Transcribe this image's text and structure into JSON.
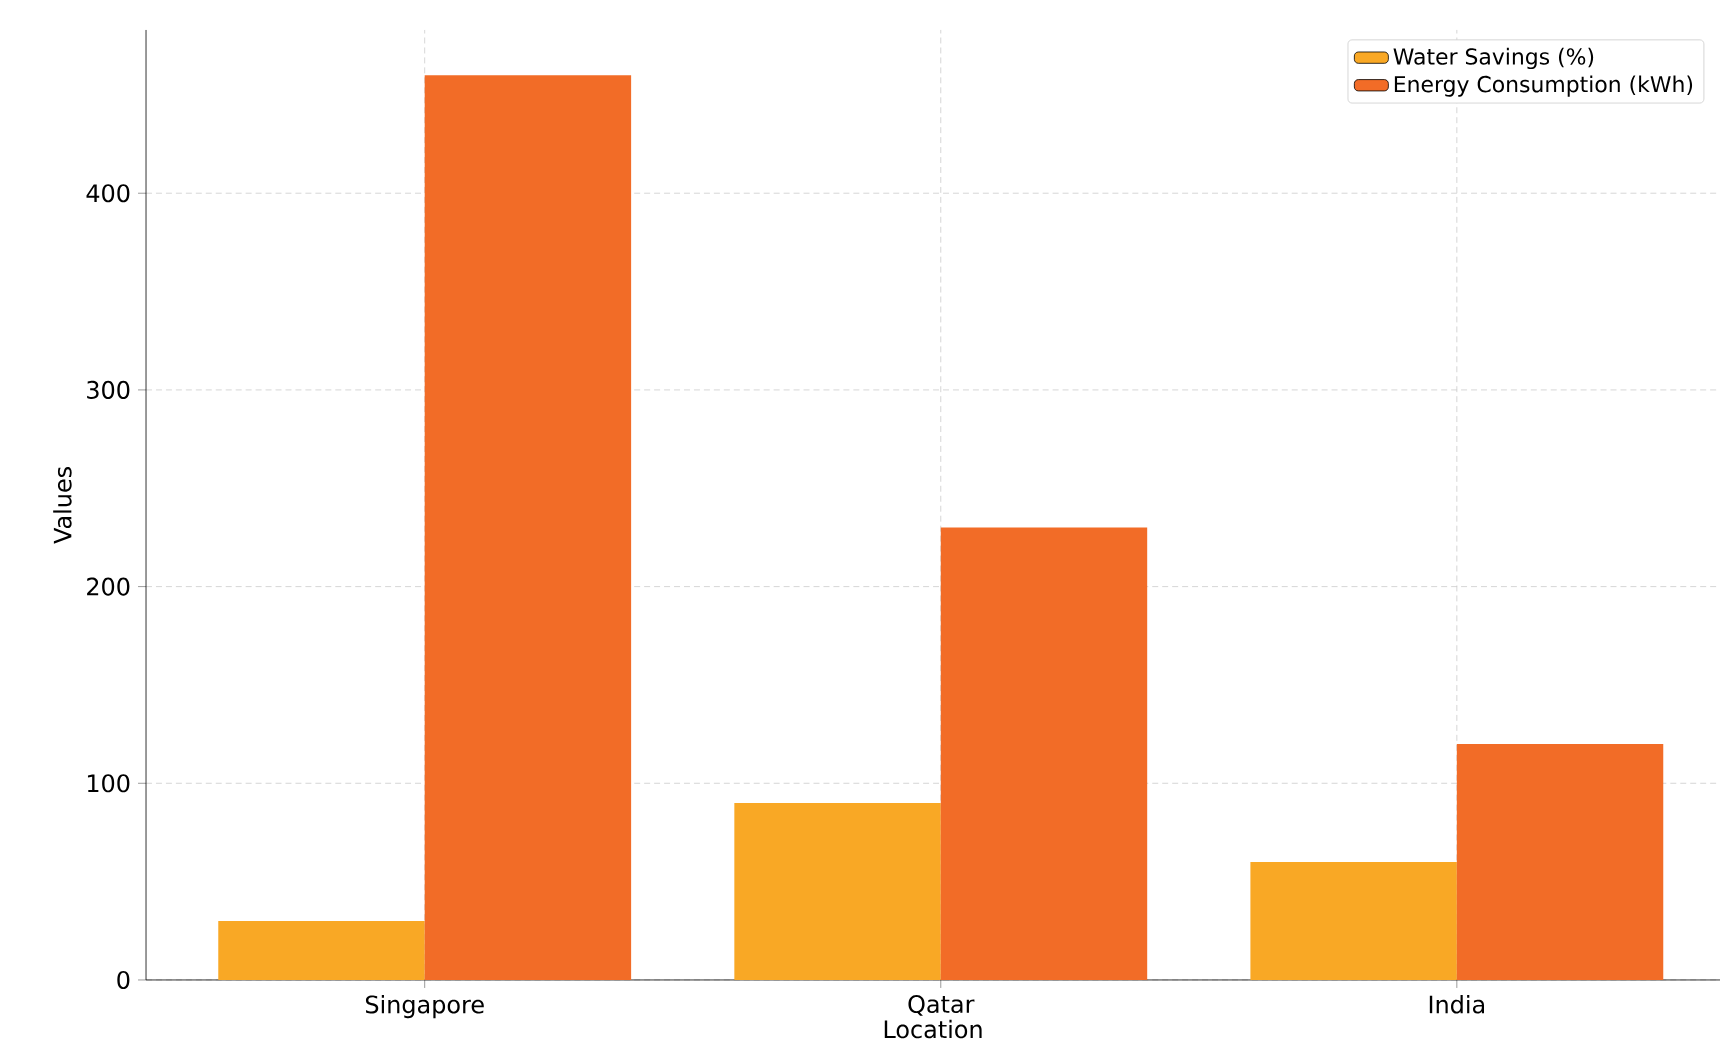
{
  "chart_data": {
    "type": "bar",
    "xlabel": "Location",
    "ylabel": "Values",
    "categories": [
      "Singapore",
      "Qatar",
      "India"
    ],
    "series": [
      {
        "name": "Water Savings (%)",
        "color": "#f9a825",
        "values": [
          30,
          90,
          60
        ]
      },
      {
        "name": "Energy Consumption (kWh)",
        "color": "#f26c27",
        "values": [
          460,
          230,
          120
        ]
      }
    ],
    "ylim": [
      0,
      483
    ],
    "yticks": [
      0,
      100,
      200,
      300,
      400
    ],
    "grid": true,
    "legend": "top right"
  }
}
